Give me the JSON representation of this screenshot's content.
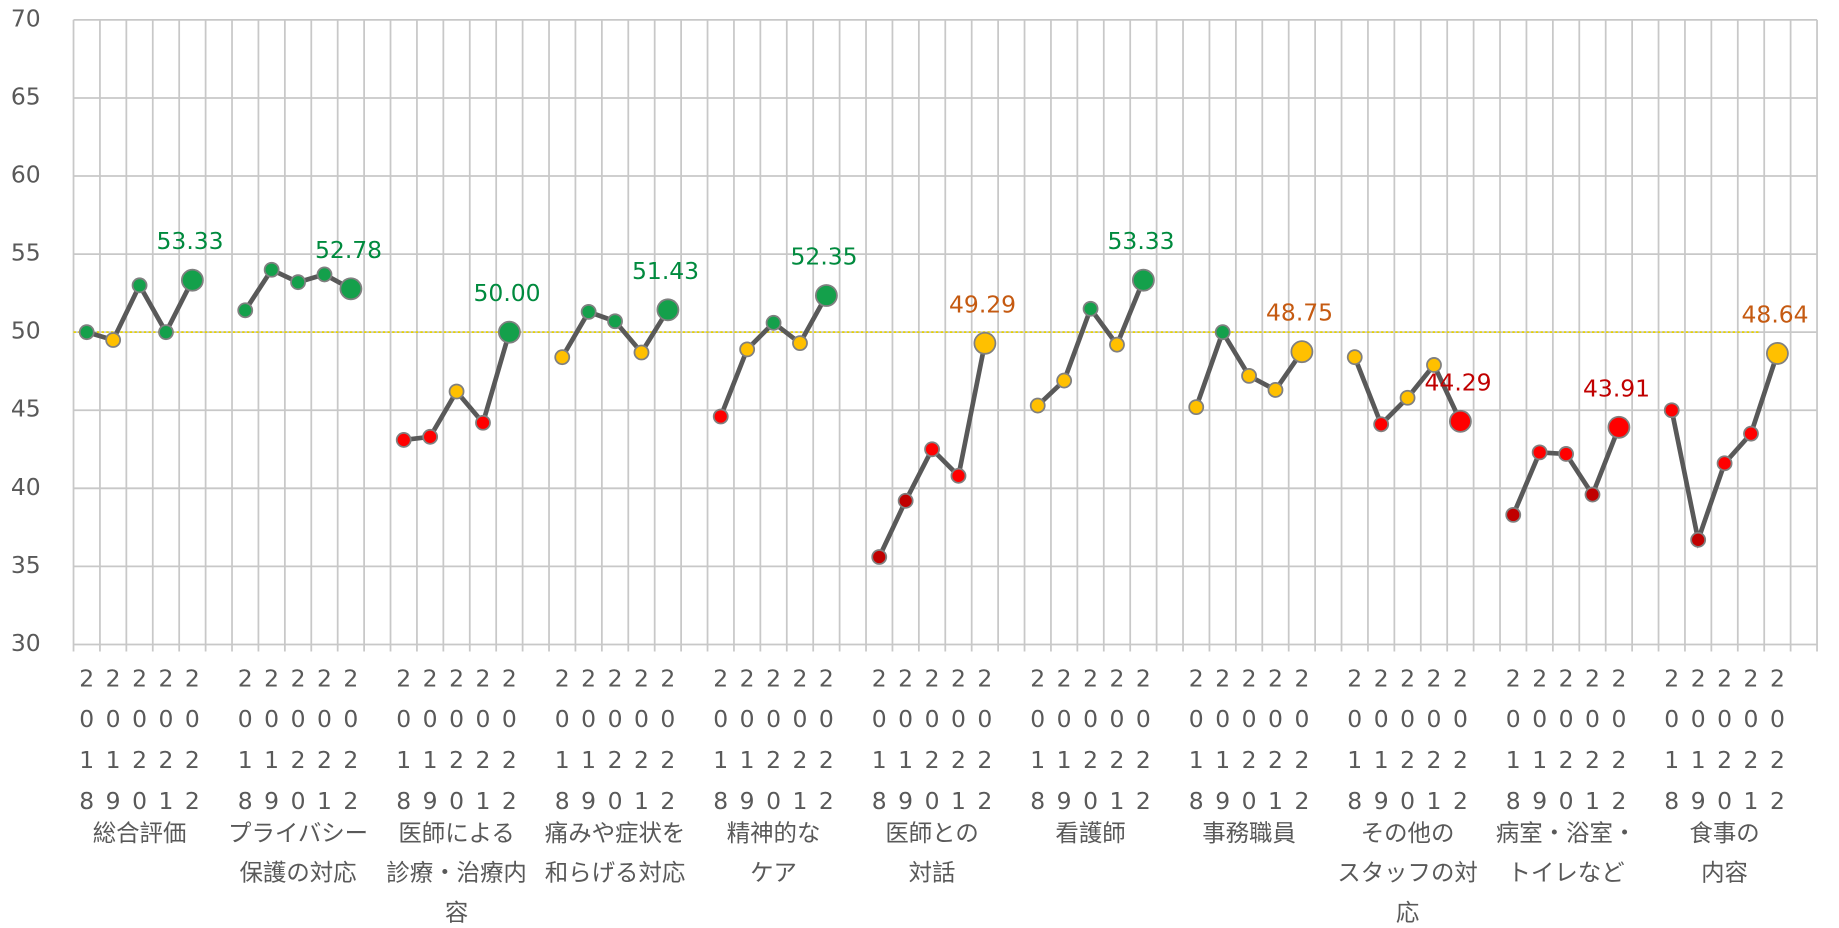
{
  "chart_data": {
    "type": "line",
    "years": [
      "2018",
      "2019",
      "2020",
      "2021",
      "2022"
    ],
    "ylim": [
      30,
      70
    ],
    "yticks": [
      30,
      35,
      40,
      45,
      50,
      55,
      60,
      65,
      70
    ],
    "grid": true,
    "line_color": "#595959",
    "reference_line": {
      "value": 50,
      "color": "#e6d200"
    },
    "groups": [
      {
        "label": [
          "総合評価"
        ],
        "values": [
          50.0,
          49.5,
          53.0,
          50.0,
          53.33
        ],
        "colors": [
          "#14a04b",
          "#ffc000",
          "#14a04b",
          "#14a04b",
          "#14a04b"
        ],
        "value_labels": [
          null,
          null,
          null,
          null,
          "53.33"
        ],
        "label_color": "#008a3e"
      },
      {
        "label": [
          "プライバシー",
          "保護の対応"
        ],
        "values": [
          51.4,
          54.0,
          53.2,
          53.7,
          52.78
        ],
        "colors": [
          "#14a04b",
          "#14a04b",
          "#14a04b",
          "#14a04b",
          "#14a04b"
        ],
        "value_labels": [
          null,
          null,
          null,
          null,
          "52.78"
        ],
        "label_color": "#008a3e"
      },
      {
        "label": [
          "医師による",
          "診療・治療内",
          "容"
        ],
        "values": [
          43.1,
          43.3,
          46.2,
          44.2,
          50.0
        ],
        "colors": [
          "#ff0000",
          "#ff0000",
          "#ffc000",
          "#ff0000",
          "#14a04b"
        ],
        "value_labels": [
          null,
          null,
          null,
          null,
          "50.00"
        ],
        "label_color": "#008a3e"
      },
      {
        "label": [
          "痛みや症状を",
          "和らげる対応"
        ],
        "values": [
          48.4,
          51.3,
          50.7,
          48.7,
          51.43
        ],
        "colors": [
          "#ffc000",
          "#14a04b",
          "#14a04b",
          "#ffc000",
          "#14a04b"
        ],
        "value_labels": [
          null,
          null,
          null,
          null,
          "51.43"
        ],
        "label_color": "#008a3e"
      },
      {
        "label": [
          "精神的な",
          "ケア"
        ],
        "values": [
          44.6,
          48.9,
          50.6,
          49.3,
          52.35
        ],
        "colors": [
          "#ff0000",
          "#ffc000",
          "#14a04b",
          "#ffc000",
          "#14a04b"
        ],
        "value_labels": [
          null,
          null,
          null,
          null,
          "52.35"
        ],
        "label_color": "#008a3e"
      },
      {
        "label": [
          "医師との",
          "対話"
        ],
        "values": [
          35.6,
          39.2,
          42.5,
          40.8,
          49.29
        ],
        "colors": [
          "#c00000",
          "#c00000",
          "#ff0000",
          "#ff0000",
          "#ffc000"
        ],
        "value_labels": [
          null,
          null,
          null,
          null,
          "49.29"
        ],
        "label_color": "#c55a11"
      },
      {
        "label": [
          "看護師"
        ],
        "values": [
          45.3,
          46.9,
          51.5,
          49.2,
          53.33
        ],
        "colors": [
          "#ffc000",
          "#ffc000",
          "#14a04b",
          "#ffc000",
          "#14a04b"
        ],
        "value_labels": [
          null,
          null,
          null,
          null,
          "53.33"
        ],
        "label_color": "#008a3e"
      },
      {
        "label": [
          "事務職員"
        ],
        "values": [
          45.2,
          50.0,
          47.2,
          46.3,
          48.75
        ],
        "colors": [
          "#ffc000",
          "#14a04b",
          "#ffc000",
          "#ffc000",
          "#ffc000"
        ],
        "value_labels": [
          null,
          null,
          null,
          null,
          "48.75"
        ],
        "label_color": "#c55a11"
      },
      {
        "label": [
          "その他の",
          "スタッフの対",
          "応"
        ],
        "values": [
          48.4,
          44.1,
          45.8,
          47.9,
          44.29
        ],
        "colors": [
          "#ffc000",
          "#ff0000",
          "#ffc000",
          "#ffc000",
          "#ff0000"
        ],
        "value_labels": [
          null,
          null,
          null,
          null,
          "44.29"
        ],
        "label_color": "#c00000"
      },
      {
        "label": [
          "病室・浴室・",
          "トイレなど"
        ],
        "values": [
          38.3,
          42.3,
          42.2,
          39.6,
          43.91
        ],
        "colors": [
          "#c00000",
          "#ff0000",
          "#ff0000",
          "#c00000",
          "#ff0000"
        ],
        "value_labels": [
          null,
          null,
          null,
          null,
          "43.91"
        ],
        "label_color": "#c00000"
      },
      {
        "label": [
          "食事の",
          "内容"
        ],
        "values": [
          45.0,
          36.7,
          41.6,
          43.5,
          48.64
        ],
        "colors": [
          "#ff0000",
          "#c00000",
          "#ff0000",
          "#ff0000",
          "#ffc000"
        ],
        "value_labels": [
          null,
          null,
          null,
          null,
          "48.64"
        ],
        "label_color": "#c55a11"
      }
    ]
  }
}
